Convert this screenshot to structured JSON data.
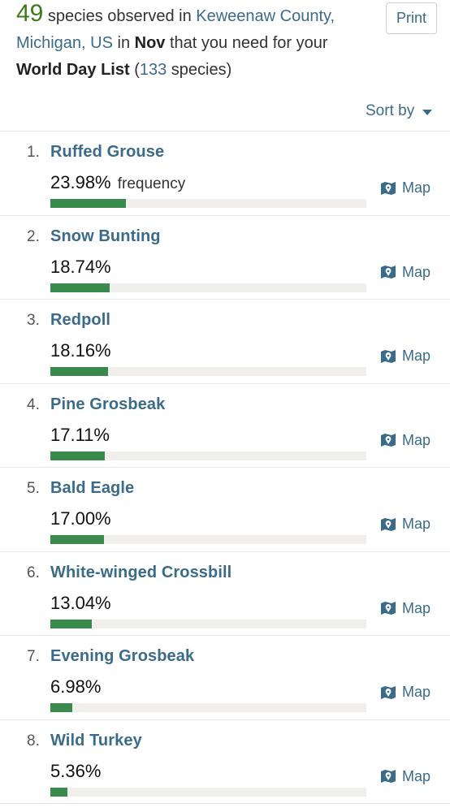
{
  "header": {
    "count": "49",
    "text1": " species observed in ",
    "location": "Keweenaw County, Michigan, US",
    "text2": " in ",
    "month": "Nov",
    "text3": " that you need for your ",
    "list_name": "World Day List",
    "text4": " (",
    "list_total": "133",
    "text5": " species)"
  },
  "print_label": "Print",
  "sort_label": "Sort by",
  "map_label": "Map",
  "frequency_word": "frequency",
  "species": [
    {
      "rank": "1.",
      "name": "Ruffed Grouse",
      "pct": "23.98%",
      "value": 23.98
    },
    {
      "rank": "2.",
      "name": "Snow Bunting",
      "pct": "18.74%",
      "value": 18.74
    },
    {
      "rank": "3.",
      "name": "Redpoll",
      "pct": "18.16%",
      "value": 18.16
    },
    {
      "rank": "4.",
      "name": "Pine Grosbeak",
      "pct": "17.11%",
      "value": 17.11
    },
    {
      "rank": "5.",
      "name": "Bald Eagle",
      "pct": "17.00%",
      "value": 17.0
    },
    {
      "rank": "6.",
      "name": "White-winged Crossbill",
      "pct": "13.04%",
      "value": 13.04
    },
    {
      "rank": "7.",
      "name": "Evening Grosbeak",
      "pct": "6.98%",
      "value": 6.98
    },
    {
      "rank": "8.",
      "name": "Wild Turkey",
      "pct": "5.36%",
      "value": 5.36
    }
  ],
  "icons": {
    "map": "map-pin-icon",
    "sort": "caret-down-icon"
  },
  "colors": {
    "accent": "#3b6b8a",
    "count": "#3d7a1c",
    "bar": "#3a8a4e",
    "track": "#f1efeb"
  }
}
